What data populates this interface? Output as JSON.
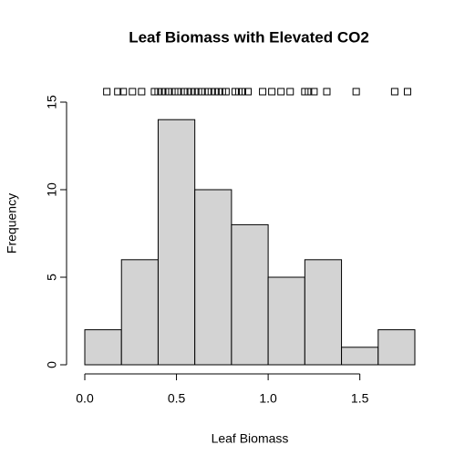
{
  "chart_data": {
    "type": "histogram",
    "title": "Leaf Biomass with Elevated CO2",
    "x_label": "Leaf Biomass",
    "y_label": "Frequency",
    "bins": [
      0,
      0.2,
      0.4,
      0.6,
      0.8,
      1.0,
      1.2,
      1.4,
      1.6,
      1.8
    ],
    "counts": [
      2,
      6,
      14,
      10,
      8,
      5,
      6,
      1,
      2
    ],
    "color": "#d3d3d3",
    "rug": [
      0.12,
      0.18,
      0.21,
      0.26,
      0.31,
      0.38,
      0.4,
      0.42,
      0.44,
      0.46,
      0.49,
      0.51,
      0.54,
      0.56,
      0.58,
      0.6,
      0.62,
      0.64,
      0.67,
      0.69,
      0.71,
      0.73,
      0.75,
      0.77,
      0.82,
      0.84,
      0.86,
      0.89,
      0.97,
      1.02,
      1.07,
      1.12,
      1.2,
      1.22,
      1.25,
      1.32,
      1.48,
      1.69,
      1.76
    ],
    "xlim": [
      0,
      1.8
    ],
    "ylim": [
      0,
      15
    ],
    "xticks": [
      {
        "value": 0,
        "label": "0.0"
      },
      0.5,
      {
        "value": 1,
        "label": "1.0"
      },
      1.5
    ],
    "yticks": [
      0,
      5,
      10,
      15
    ]
  }
}
